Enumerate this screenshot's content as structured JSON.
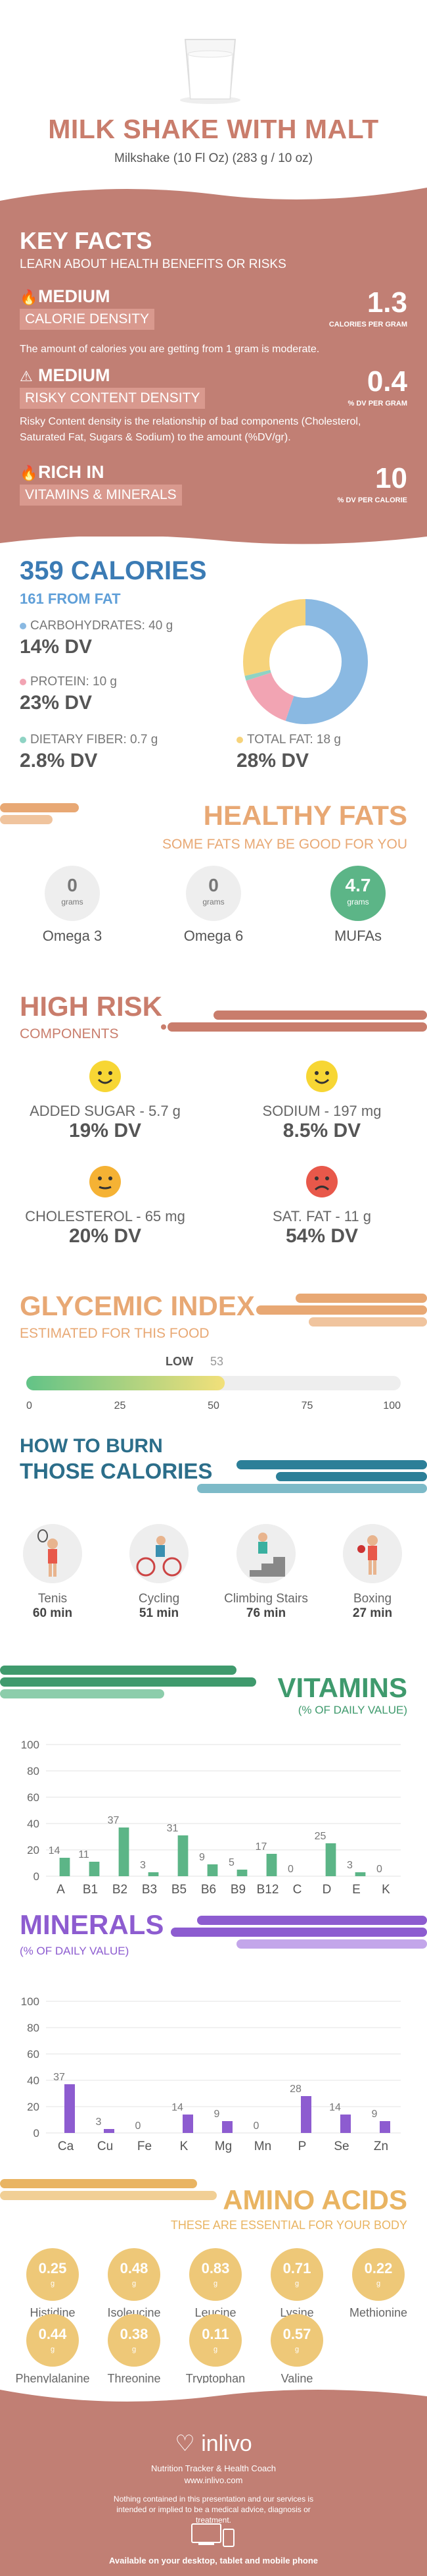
{
  "header": {
    "title": "MILK SHAKE WITH MALT",
    "subtitle": "Milkshake (10 Fl Oz) (283 g / 10 oz)"
  },
  "key_facts": {
    "title": "KEY FACTS",
    "subtitle": "LEARN ABOUT HEALTH BENEFITS OR RISKS",
    "items": [
      {
        "level": "MEDIUM",
        "label": "CALORIE DENSITY",
        "value": "1.3",
        "unit": "CALORIES PER GRAM",
        "desc": "The amount of calories you are getting from 1 gram is moderate."
      },
      {
        "level": "MEDIUM",
        "label": "RISKY CONTENT DENSITY",
        "value": "0.4",
        "unit": "% DV PER GRAM",
        "desc": "Risky Content density is the relationship of bad components (Cholesterol, Saturated Fat, Sugars & Sodium) to the amount (%DV/gr)."
      },
      {
        "level": "RICH IN",
        "label": "VITAMINS & MINERALS",
        "value": "10",
        "unit": "% DV PER CALORIE",
        "desc": ""
      }
    ]
  },
  "calories": {
    "title": "359 CALORIES",
    "from_fat": "161 FROM FAT",
    "carbs": {
      "label": "CARBOHYDRATES: 40 g",
      "dv": "14% DV",
      "color": "#8ab9e2"
    },
    "protein": {
      "label": "PROTEIN: 10 g",
      "dv": "23% DV",
      "color": "#f2a4b3"
    },
    "fiber": {
      "label": "DIETARY FIBER: 0.7 g",
      "dv": "2.8% DV",
      "color": "#8fd3c4"
    },
    "fat": {
      "label": "TOTAL FAT: 18 g",
      "dv": "28% DV",
      "color": "#f6d37b"
    }
  },
  "healthy_fats": {
    "title": "HEALTHY FATS",
    "subtitle": "SOME FATS MAY BE GOOD FOR YOU",
    "items": [
      {
        "value": "0",
        "unit": "grams",
        "name": "Omega 3"
      },
      {
        "value": "0",
        "unit": "grams",
        "name": "Omega 6"
      },
      {
        "value": "4.7",
        "unit": "grams",
        "name": "MUFAs"
      }
    ]
  },
  "high_risk": {
    "title": "HIGH RISK",
    "subtitle": "COMPONENTS",
    "items": [
      {
        "label": "ADDED SUGAR - 5.7 g",
        "dv": "19% DV",
        "mood": "happy"
      },
      {
        "label": "SODIUM - 197 mg",
        "dv": "8.5% DV",
        "mood": "happy"
      },
      {
        "label": "CHOLESTEROL - 65 mg",
        "dv": "20% DV",
        "mood": "neutral"
      },
      {
        "label": "SAT. FAT - 11 g",
        "dv": "54% DV",
        "mood": "sad"
      }
    ]
  },
  "glycemic": {
    "title": "GLYCEMIC INDEX",
    "subtitle": "ESTIMATED FOR THIS FOOD",
    "level": "LOW",
    "value": 53,
    "ticks": [
      "0",
      "25",
      "50",
      "75",
      "100"
    ]
  },
  "burn": {
    "title1": "HOW TO BURN",
    "title2": "THOSE CALORIES",
    "items": [
      {
        "name": "Tenis",
        "minutes": "60 min",
        "icon": "tennis-icon"
      },
      {
        "name": "Cycling",
        "minutes": "51 min",
        "icon": "cycling-icon"
      },
      {
        "name": "Climbing Stairs",
        "minutes": "76 min",
        "icon": "stairs-icon"
      },
      {
        "name": "Boxing",
        "minutes": "27 min",
        "icon": "boxing-icon"
      }
    ]
  },
  "vitamins": {
    "title": "VITAMINS",
    "subtitle": "(% OF DAILY VALUE)"
  },
  "minerals": {
    "title": "MINERALS",
    "subtitle": "(% OF DAILY VALUE)"
  },
  "chart_data": [
    {
      "type": "bar",
      "title": "VITAMINS",
      "categories": [
        "A",
        "B1",
        "B2",
        "B3",
        "B5",
        "B6",
        "B9",
        "B12",
        "C",
        "D",
        "E",
        "K"
      ],
      "values": [
        14,
        11,
        37,
        3,
        31,
        9,
        5,
        17,
        0,
        25,
        3,
        0
      ],
      "ylim": [
        0,
        100
      ],
      "yticks": [
        0,
        20,
        40,
        60,
        80,
        100
      ],
      "color": "#5cb587"
    },
    {
      "type": "bar",
      "title": "MINERALS",
      "categories": [
        "Ca",
        "Cu",
        "Fe",
        "K",
        "Mg",
        "Mn",
        "P",
        "Se",
        "Zn"
      ],
      "values": [
        37,
        3,
        0,
        14,
        9,
        0,
        28,
        14,
        9
      ],
      "ylim": [
        0,
        100
      ],
      "yticks": [
        0,
        20,
        40,
        60,
        80,
        100
      ],
      "color": "#8d5cd0"
    }
  ],
  "amino": {
    "title": "AMINO ACIDS",
    "subtitle": "THESE ARE ESSENTIAL FOR YOUR BODY",
    "items": [
      {
        "value": "0.25",
        "unit": "g",
        "name": "Histidine"
      },
      {
        "value": "0.48",
        "unit": "g",
        "name": "Isoleucine"
      },
      {
        "value": "0.83",
        "unit": "g",
        "name": "Leucine"
      },
      {
        "value": "0.71",
        "unit": "g",
        "name": "Lysine"
      },
      {
        "value": "0.22",
        "unit": "g",
        "name": "Methionine"
      },
      {
        "value": "0.44",
        "unit": "g",
        "name": "Phenylalanine"
      },
      {
        "value": "0.38",
        "unit": "g",
        "name": "Threonine"
      },
      {
        "value": "0.11",
        "unit": "g",
        "name": "Tryptophan"
      },
      {
        "value": "0.57",
        "unit": "g",
        "name": "Valine"
      }
    ]
  },
  "footer": {
    "brand": "inlivo",
    "tagline": "Nutrition Tracker & Health Coach",
    "url": "www.inlivo.com",
    "disclaimer": "Nothing contained in this presentation and our services is intended or implied to be a medical advice, diagnosis or treatment.",
    "available": "Available on your desktop, tablet and mobile phone"
  }
}
